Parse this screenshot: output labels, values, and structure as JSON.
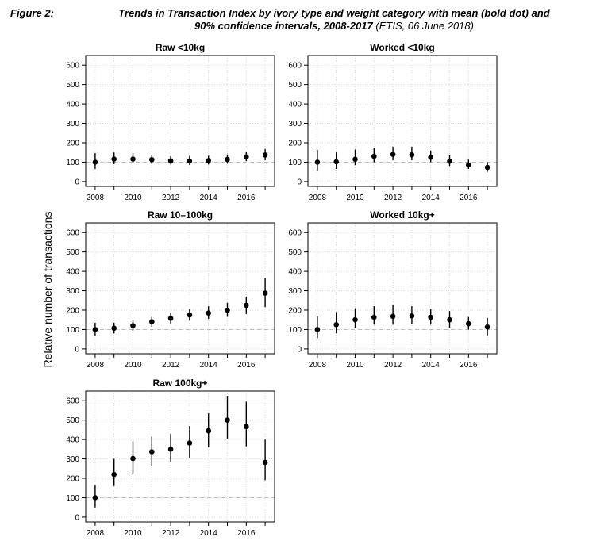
{
  "caption": {
    "label": "Figure 2:",
    "title_line1": "Trends in Transaction Index by ivory type and weight category with mean (bold dot) and",
    "title_line2": "90% confidence intervals, 2008-2017",
    "source": "(ETIS, 06 June 2018)"
  },
  "ylabel": "Relative number of transactions",
  "chart_data": [
    {
      "type": "scatter",
      "title": "Raw <10kg",
      "x": [
        2008,
        2009,
        2010,
        2011,
        2012,
        2013,
        2014,
        2015,
        2016,
        2017
      ],
      "mean": [
        100,
        116,
        116,
        113,
        107,
        106,
        108,
        114,
        127,
        137
      ],
      "lower": [
        65,
        90,
        92,
        90,
        88,
        86,
        88,
        92,
        105,
        110
      ],
      "upper": [
        147,
        150,
        147,
        137,
        130,
        132,
        133,
        140,
        152,
        168
      ],
      "xticks": [
        2008,
        2010,
        2012,
        2014,
        2016
      ],
      "yticks": [
        0,
        100,
        200,
        300,
        400,
        500,
        600
      ],
      "xlim": [
        2007.5,
        2017.5
      ],
      "ylim": [
        -25,
        650
      ],
      "reference_line": 100,
      "grid": true
    },
    {
      "type": "scatter",
      "title": "Worked <10kg",
      "x": [
        2008,
        2009,
        2010,
        2011,
        2012,
        2013,
        2014,
        2015,
        2016,
        2017
      ],
      "mean": [
        100,
        102,
        115,
        130,
        140,
        138,
        125,
        105,
        86,
        73
      ],
      "lower": [
        55,
        65,
        85,
        100,
        110,
        110,
        100,
        80,
        65,
        50
      ],
      "upper": [
        163,
        150,
        165,
        175,
        180,
        180,
        160,
        135,
        113,
        100
      ],
      "xticks": [
        2008,
        2010,
        2012,
        2014,
        2016
      ],
      "yticks": [
        0,
        100,
        200,
        300,
        400,
        500,
        600
      ],
      "xlim": [
        2007.5,
        2017.5
      ],
      "ylim": [
        -25,
        650
      ],
      "reference_line": 100,
      "grid": true
    },
    {
      "type": "scatter",
      "title": "Raw 10–100kg",
      "x": [
        2008,
        2009,
        2010,
        2011,
        2012,
        2013,
        2014,
        2015,
        2016,
        2017
      ],
      "mean": [
        100,
        107,
        120,
        140,
        158,
        175,
        185,
        200,
        225,
        288
      ],
      "lower": [
        70,
        80,
        95,
        115,
        130,
        145,
        155,
        165,
        180,
        215
      ],
      "upper": [
        135,
        135,
        150,
        165,
        185,
        205,
        220,
        238,
        270,
        365
      ],
      "xticks": [
        2008,
        2010,
        2012,
        2014,
        2016
      ],
      "yticks": [
        0,
        100,
        200,
        300,
        400,
        500,
        600
      ],
      "xlim": [
        2007.5,
        2017.5
      ],
      "ylim": [
        -25,
        650
      ],
      "reference_line": 100,
      "grid": true
    },
    {
      "type": "scatter",
      "title": "Worked 10kg+",
      "x": [
        2008,
        2009,
        2010,
        2011,
        2012,
        2013,
        2014,
        2015,
        2016,
        2017
      ],
      "mean": [
        100,
        125,
        150,
        163,
        168,
        170,
        163,
        150,
        130,
        113
      ],
      "lower": [
        55,
        80,
        110,
        125,
        125,
        130,
        125,
        110,
        100,
        70
      ],
      "upper": [
        168,
        190,
        210,
        220,
        225,
        220,
        205,
        195,
        165,
        160
      ],
      "xticks": [
        2008,
        2010,
        2012,
        2014,
        2016
      ],
      "yticks": [
        0,
        100,
        200,
        300,
        400,
        500,
        600
      ],
      "xlim": [
        2007.5,
        2017.5
      ],
      "ylim": [
        -25,
        650
      ],
      "reference_line": 100,
      "grid": true
    },
    {
      "type": "scatter",
      "title": "Raw 100kg+",
      "x": [
        2008,
        2009,
        2010,
        2011,
        2012,
        2013,
        2014,
        2015,
        2016,
        2017
      ],
      "mean": [
        100,
        220,
        302,
        337,
        350,
        382,
        445,
        500,
        467,
        282
      ],
      "lower": [
        50,
        160,
        225,
        265,
        285,
        305,
        360,
        405,
        365,
        190
      ],
      "upper": [
        165,
        300,
        390,
        415,
        430,
        470,
        535,
        625,
        595,
        400
      ],
      "xticks": [
        2008,
        2010,
        2012,
        2014,
        2016
      ],
      "yticks": [
        0,
        100,
        200,
        300,
        400,
        500,
        600
      ],
      "xlim": [
        2007.5,
        2017.5
      ],
      "ylim": [
        -25,
        650
      ],
      "reference_line": 100,
      "grid": true
    }
  ]
}
